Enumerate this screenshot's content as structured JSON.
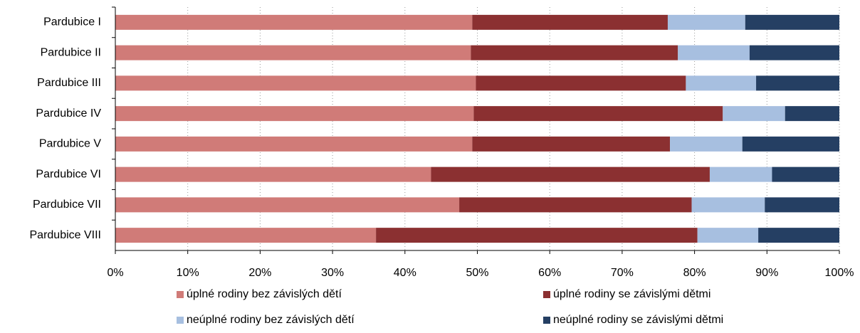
{
  "chart_data": {
    "type": "stacked-barh",
    "categories": [
      "Pardubice I",
      "Pardubice II",
      "Pardubice III",
      "Pardubice IV",
      "Pardubice V",
      "Pardubice VI",
      "Pardubice VII",
      "Pardubice VIII"
    ],
    "series": [
      {
        "name": "úplné rodiny bez závislých dětí",
        "color": "#d07b78",
        "values": [
          49.3,
          49.1,
          49.8,
          49.5,
          49.3,
          43.6,
          47.5,
          36.0
        ]
      },
      {
        "name": "úplné rodiny se závislými dětmi",
        "color": "#8b3031",
        "values": [
          27.0,
          28.6,
          29.0,
          34.4,
          27.3,
          38.5,
          32.1,
          44.4
        ]
      },
      {
        "name": "neúplné rodiny bez závislých dětí",
        "color": "#a7bfe0",
        "values": [
          10.7,
          9.9,
          9.7,
          8.6,
          10.0,
          8.6,
          10.1,
          8.4
        ]
      },
      {
        "name": "neúplné rodiny se závislými dětmi",
        "color": "#253f63",
        "values": [
          13.0,
          12.4,
          11.5,
          7.5,
          13.4,
          9.3,
          10.3,
          11.2
        ]
      }
    ],
    "xlim": [
      0,
      100
    ],
    "xticks": [
      {
        "value": 0,
        "label": "0%"
      },
      {
        "value": 10,
        "label": "10%"
      },
      {
        "value": 20,
        "label": "20%"
      },
      {
        "value": 30,
        "label": "30%"
      },
      {
        "value": 40,
        "label": "40%"
      },
      {
        "value": 50,
        "label": "50%"
      },
      {
        "value": 60,
        "label": "60%"
      },
      {
        "value": 70,
        "label": "70%"
      },
      {
        "value": 80,
        "label": "80%"
      },
      {
        "value": 90,
        "label": "90%"
      },
      {
        "value": 100,
        "label": "100%"
      }
    ],
    "grid": true,
    "legend": "bottom"
  }
}
